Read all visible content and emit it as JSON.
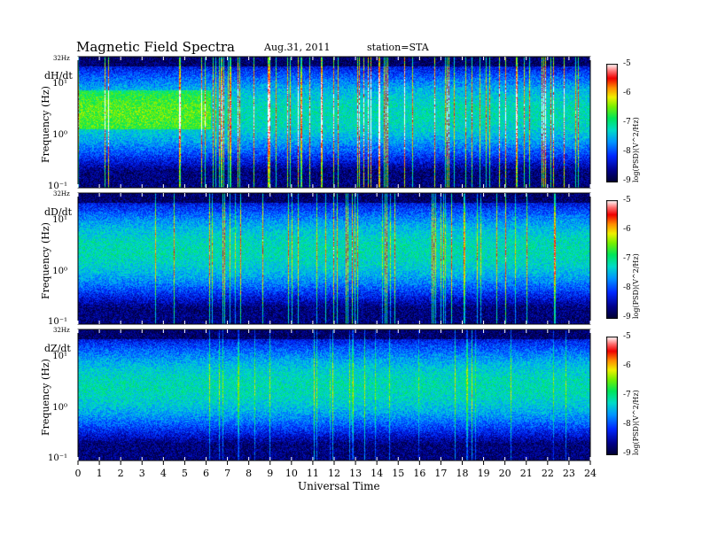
{
  "chart_data": {
    "type": "heatmap",
    "title": "Magnetic  Field  Spectra",
    "date": "Aug.31, 2011",
    "station": "station=STA",
    "xlabel": "Universal Time",
    "x_ticks": [
      "0",
      "1",
      "2",
      "3",
      "4",
      "5",
      "6",
      "7",
      "8",
      "9",
      "10",
      "11",
      "12",
      "13",
      "14",
      "15",
      "16",
      "17",
      "18",
      "19",
      "20",
      "21",
      "22",
      "23",
      "24"
    ],
    "xlim": [
      0,
      24
    ],
    "ylabel": "Frequency  (Hz)",
    "y_scale": "log",
    "ylim_hz": [
      0.1,
      32
    ],
    "top_freq_label": "32Hz",
    "colorbar": {
      "label": "log(PSD)(V^2/Hz)",
      "range": [
        -9,
        -5
      ],
      "ticks": [
        "-5",
        "-6",
        "-7",
        "-8",
        "-9"
      ]
    },
    "panels": [
      {
        "name": "dH/dt",
        "y_ticks": [
          "10¹",
          "10⁰",
          "10⁻¹"
        ],
        "activity": 0.9
      },
      {
        "name": "dD/dt",
        "y_ticks": [
          "10¹",
          "10⁰",
          "10⁻¹"
        ],
        "activity": 0.6
      },
      {
        "name": "dZ/dt",
        "y_ticks": [
          "10¹",
          "10⁰",
          "10⁻¹"
        ],
        "activity": 0.35
      }
    ]
  }
}
